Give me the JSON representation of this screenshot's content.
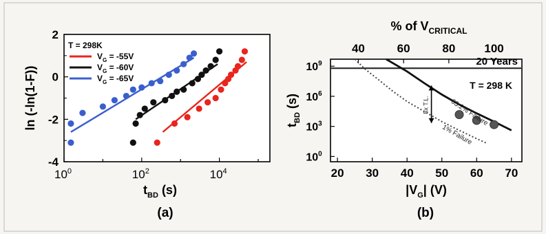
{
  "colors": {
    "red": "#e8251e",
    "black": "#111111",
    "blue": "#3a5fcd",
    "frame_bg": "#f7f5f2",
    "panel_bg": "#ffffff",
    "axis": "#000000",
    "marker_gray": "#555555"
  },
  "chart_data": [
    {
      "panel_label": "(a)",
      "type": "scatter",
      "xlabel": "t",
      "xlabel_sub": "BD",
      "xlabel_unit": " (s)",
      "ylabel": "ln (-ln(1-F))",
      "x_scale": "log",
      "xlim": [
        1,
        200000
      ],
      "ylim": [
        -4,
        2
      ],
      "x_ticks": [
        {
          "value": 1,
          "base": "10",
          "exp": "0"
        },
        {
          "value": 100,
          "base": "10",
          "exp": "2"
        },
        {
          "value": 10000,
          "base": "10",
          "exp": "4"
        }
      ],
      "y_ticks": [
        {
          "value": 2,
          "label": "2"
        },
        {
          "value": 0,
          "label": "0"
        },
        {
          "value": -2,
          "label": "-2"
        },
        {
          "value": -4,
          "label": "-4"
        }
      ],
      "annotation": "T = 298K",
      "legend_position": "top-left",
      "series": [
        {
          "name_prefix": "V",
          "name_sub": "G",
          "name_suffix": " = -55V",
          "color": "#e8251e",
          "points": [
            [
              250,
              -3.1
            ],
            [
              700,
              -2.2
            ],
            [
              1500,
              -1.9
            ],
            [
              3000,
              -1.5
            ],
            [
              5000,
              -1.2
            ],
            [
              8000,
              -1.0
            ],
            [
              11000,
              -0.6
            ],
            [
              14000,
              -0.3
            ],
            [
              17000,
              -0.1
            ],
            [
              20000,
              0.1
            ],
            [
              26000,
              0.3
            ],
            [
              30000,
              0.5
            ],
            [
              38000,
              0.8
            ],
            [
              45000,
              1.2
            ]
          ],
          "fit": [
            [
              350,
              -2.6
            ],
            [
              50000,
              0.7
            ]
          ]
        },
        {
          "name_prefix": "V",
          "name_sub": "G",
          "name_suffix": " = -60V",
          "color": "#111111",
          "points": [
            [
              60,
              -3.1
            ],
            [
              70,
              -2.2
            ],
            [
              90,
              -1.8
            ],
            [
              120,
              -1.5
            ],
            [
              200,
              -1.2
            ],
            [
              400,
              -1.1
            ],
            [
              600,
              -0.9
            ],
            [
              800,
              -0.7
            ],
            [
              1200,
              -0.6
            ],
            [
              2000,
              -0.3
            ],
            [
              2800,
              -0.1
            ],
            [
              3500,
              0.1
            ],
            [
              4500,
              0.3
            ],
            [
              6000,
              0.5
            ],
            [
              8000,
              0.8
            ],
            [
              10000,
              1.2
            ]
          ],
          "fit": [
            [
              70,
              -2.0
            ],
            [
              9000,
              0.6
            ]
          ]
        },
        {
          "name_prefix": "V",
          "name_sub": "G",
          "name_suffix": " = -65V",
          "color": "#3a5fcd",
          "points": [
            [
              1.5,
              -3.1
            ],
            [
              1.5,
              -2.2
            ],
            [
              3,
              -1.7
            ],
            [
              10,
              -1.4
            ],
            [
              20,
              -1.1
            ],
            [
              40,
              -0.9
            ],
            [
              60,
              -0.6
            ],
            [
              100,
              -0.5
            ],
            [
              180,
              -0.3
            ],
            [
              300,
              -0.2
            ],
            [
              500,
              0.1
            ],
            [
              800,
              0.3
            ],
            [
              1200,
              0.6
            ],
            [
              1700,
              0.9
            ],
            [
              2200,
              1.1
            ]
          ],
          "fit": [
            [
              1.5,
              -2.6
            ],
            [
              2200,
              0.9
            ]
          ]
        }
      ]
    },
    {
      "panel_label": "(b)",
      "type": "line",
      "xlabel": "|V",
      "xlabel_sub": "G",
      "xlabel_unit": "| (V)",
      "ylabel": "t",
      "ylabel_sub": "BD",
      "ylabel_unit": " (s)",
      "y_scale": "log",
      "xlim": [
        18,
        73
      ],
      "ylim": [
        0.3,
        5000000000
      ],
      "top_axis_label": "% of V",
      "top_axis_label_sub": "CRITICAL",
      "x_ticks": [
        20,
        30,
        40,
        50,
        60,
        70
      ],
      "top_ticks": [
        {
          "value": 26,
          "label": "40"
        },
        {
          "value": 39,
          "label": "60"
        },
        {
          "value": 52,
          "label": "80"
        },
        {
          "value": 65,
          "label": "100"
        }
      ],
      "y_ticks": [
        {
          "value": 1,
          "base": "10",
          "exp": "0"
        },
        {
          "value": 1000,
          "base": "10",
          "exp": "3"
        },
        {
          "value": 1000000,
          "base": "10",
          "exp": "6"
        },
        {
          "value": 1000000000,
          "base": "10",
          "exp": "9"
        }
      ],
      "reference_line": {
        "label": "20 Years",
        "y": 630000000
      },
      "annotation": "T = 298 K",
      "series": [
        {
          "name": "63.2% Failure",
          "color": "#111111",
          "style": "solid",
          "curve": [
            [
              34,
              5000000000
            ],
            [
              40,
              300000000
            ],
            [
              45,
              20000000
            ],
            [
              50,
              1500000
            ],
            [
              55,
              150000
            ],
            [
              60,
              20000
            ],
            [
              65,
              3000
            ],
            [
              70,
              400
            ]
          ],
          "measured": [
            [
              55,
              15000
            ],
            [
              60,
              4000
            ],
            [
              65,
              1500
            ]
          ]
        },
        {
          "name": "1% Failure",
          "color": "#444444",
          "style": "dotted",
          "curve": [
            [
              25,
              5000000000
            ],
            [
              28,
              500000000
            ],
            [
              32,
              40000000
            ],
            [
              36,
              3000000
            ],
            [
              40,
              300000
            ],
            [
              45,
              30000
            ],
            [
              50,
              3000
            ],
            [
              55,
              400
            ],
            [
              60,
              60
            ],
            [
              63,
              20
            ]
          ]
        }
      ],
      "arrow_label": "5x T.L.",
      "arrow_x": 47
    }
  ]
}
